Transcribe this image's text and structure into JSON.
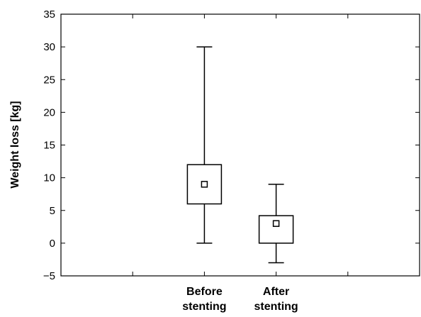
{
  "chart_data": {
    "type": "box",
    "ylabel": "Weight loss [kg]",
    "ylim": [
      -5,
      35
    ],
    "yticks": [
      -5,
      0,
      5,
      10,
      15,
      20,
      25,
      30,
      35
    ],
    "ytick_labels": [
      "−5",
      "0",
      "5",
      "10",
      "15",
      "20",
      "25",
      "30",
      "35"
    ],
    "grid": false,
    "categories": [
      {
        "label_lines": [
          "Before",
          "stenting"
        ]
      },
      {
        "label_lines": [
          "After",
          "stenting"
        ]
      }
    ],
    "boxes": [
      {
        "whisker_low": 0,
        "q1": 6,
        "q3": 12,
        "whisker_high": 30,
        "mean": 9
      },
      {
        "whisker_low": -3,
        "q1": 0,
        "q3": 4.2,
        "whisker_high": 9,
        "mean": 3
      }
    ]
  },
  "colors": {
    "stroke": "#000000",
    "background": "#ffffff"
  }
}
